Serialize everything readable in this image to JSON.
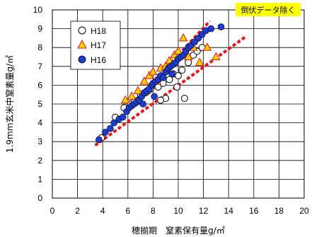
{
  "chart_data": {
    "type": "scatter",
    "xlabel": "穂揃期　窒素保有量g/㎡",
    "ylabel": "1.9mm玄米中窒素量g/㎡",
    "xlim": [
      0,
      20
    ],
    "ylim": [
      0,
      10
    ],
    "xticks": [
      "0",
      "2",
      "4",
      "6",
      "8",
      "10",
      "12",
      "14",
      "16",
      "18",
      "20"
    ],
    "yticks": [
      "0",
      "1",
      "2",
      "3",
      "4",
      "5",
      "6",
      "7",
      "8",
      "9",
      "10"
    ],
    "grid": true,
    "legend_position": "top-left",
    "annotation": "倒伏データ除く",
    "colors": {
      "H18_marker": "#ffffff",
      "H17_marker": "#ffd200",
      "H16_marker": "#1e3cd2",
      "band_lines": "#e8141e",
      "annotation_bg": "#ffff00"
    },
    "series": [
      {
        "name": "H18",
        "marker": "circle-open",
        "x": [
          3.9,
          5.0,
          5.7,
          6.2,
          6.5,
          7.0,
          7.4,
          7.8,
          8.2,
          8.4,
          8.8,
          9.0,
          9.3,
          9.6,
          10.0,
          10.3,
          10.5,
          10.8,
          11.2,
          11.5,
          11.9,
          6.8,
          7.6,
          8.6,
          9.9
        ],
        "y": [
          3.2,
          4.3,
          4.8,
          5.0,
          5.1,
          5.5,
          5.6,
          5.8,
          6.0,
          5.9,
          6.1,
          5.3,
          6.3,
          6.6,
          6.5,
          6.8,
          5.3,
          7.2,
          7.6,
          7.8,
          8.0,
          5.2,
          5.7,
          5.2,
          5.9
        ]
      },
      {
        "name": "H17",
        "marker": "triangle",
        "x": [
          5.8,
          6.3,
          6.8,
          7.3,
          7.7,
          8.0,
          8.3,
          8.6,
          9.0,
          9.3,
          9.7,
          10.0,
          10.4,
          10.8,
          11.2,
          11.7,
          12.3,
          13.0
        ],
        "y": [
          5.2,
          5.4,
          5.7,
          6.2,
          6.5,
          6.7,
          6.2,
          6.9,
          7.0,
          7.3,
          7.6,
          7.8,
          8.5,
          7.5,
          8.0,
          7.2,
          8.0,
          7.5
        ]
      },
      {
        "name": "H16",
        "marker": "circle-filled",
        "x": [
          3.7,
          4.2,
          4.6,
          4.9,
          5.3,
          5.6,
          5.9,
          6.1,
          6.3,
          6.5,
          6.7,
          6.9,
          7.1,
          7.3,
          7.5,
          7.7,
          7.9,
          8.0,
          8.2,
          8.4,
          8.6,
          8.8,
          9.0,
          9.2,
          9.4,
          9.6,
          9.8,
          10.0,
          10.2,
          10.4,
          10.6,
          10.8,
          11.0,
          11.3,
          11.6,
          11.9,
          12.2,
          12.6,
          13.4,
          7.2,
          8.1,
          9.5
        ],
        "y": [
          3.1,
          3.5,
          3.7,
          4.0,
          4.2,
          4.3,
          4.6,
          4.8,
          4.9,
          5.0,
          5.1,
          5.2,
          5.4,
          5.6,
          5.7,
          5.8,
          6.0,
          6.1,
          6.2,
          6.3,
          6.5,
          6.4,
          6.7,
          6.9,
          7.0,
          7.1,
          7.2,
          7.4,
          7.5,
          7.6,
          7.8,
          8.0,
          8.1,
          8.3,
          8.5,
          8.7,
          8.9,
          9.0,
          9.1,
          5.0,
          5.4,
          6.6
        ]
      }
    ],
    "reference_lines": [
      {
        "x": [
          3.6,
          12.5
        ],
        "y": [
          3.0,
          9.4
        ]
      },
      {
        "x": [
          3.4,
          15.4
        ],
        "y": [
          2.8,
          8.6
        ]
      }
    ]
  }
}
